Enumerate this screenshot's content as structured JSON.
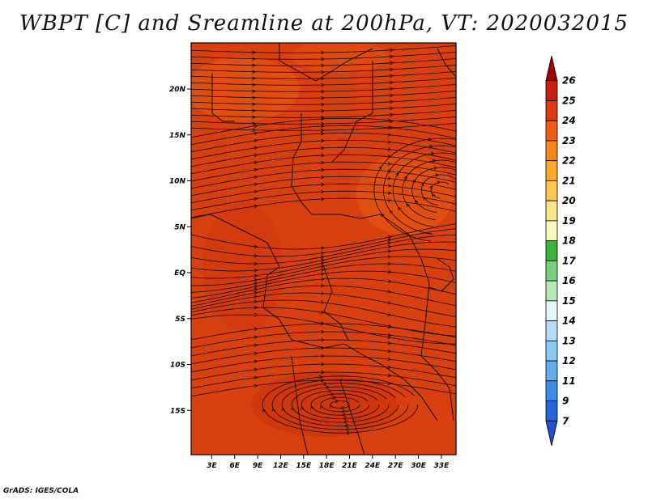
{
  "title": "WBPT [C] and Sreamline at 200hPa, VT: 2020032015",
  "credit": "GrADS: IGES/COLA",
  "map": {
    "lat_labels": [
      {
        "label": "20N",
        "lat": 20
      },
      {
        "label": "15N",
        "lat": 15
      },
      {
        "label": "10N",
        "lat": 10
      },
      {
        "label": "5N",
        "lat": 5
      },
      {
        "label": "EQ",
        "lat": 0
      },
      {
        "label": "5S",
        "lat": -5
      },
      {
        "label": "10S",
        "lat": -10
      },
      {
        "label": "15S",
        "lat": -15
      }
    ],
    "lon_labels": [
      {
        "label": "3E",
        "lon": 3
      },
      {
        "label": "6E",
        "lon": 6
      },
      {
        "label": "9E",
        "lon": 9
      },
      {
        "label": "12E",
        "lon": 12
      },
      {
        "label": "15E",
        "lon": 15
      },
      {
        "label": "18E",
        "lon": 18
      },
      {
        "label": "21E",
        "lon": 21
      },
      {
        "label": "24E",
        "lon": 24
      },
      {
        "label": "27E",
        "lon": 27
      },
      {
        "label": "30E",
        "lon": 30
      },
      {
        "label": "33E",
        "lon": 33
      }
    ],
    "field_color": "#d84010",
    "warm_color": "#e85a10",
    "streamline_color": "#1a0800"
  },
  "colorbar": {
    "levels": [
      "26",
      "25",
      "24",
      "23",
      "22",
      "21",
      "20",
      "19",
      "18",
      "17",
      "16",
      "15",
      "14",
      "13",
      "12",
      "11",
      "9",
      "7"
    ],
    "colors": [
      "#a00000",
      "#c81e0e",
      "#e03a10",
      "#f05c14",
      "#f88618",
      "#fca828",
      "#fcc850",
      "#fce488",
      "#fcf8c0",
      "#3cb43c",
      "#78d078",
      "#b4e8b4",
      "#e4f6f6",
      "#b4dcf8",
      "#8cc8f4",
      "#64acf0",
      "#3c8ce8",
      "#2864dc",
      "#1e50d0"
    ]
  }
}
